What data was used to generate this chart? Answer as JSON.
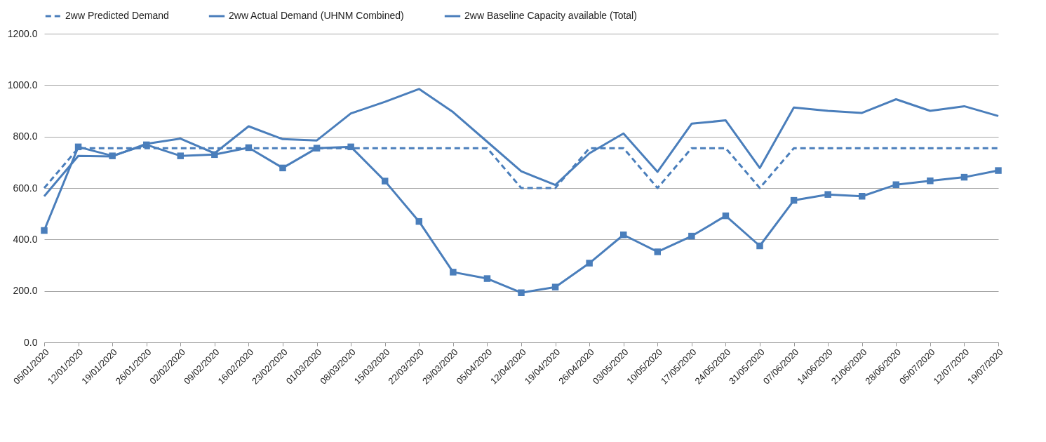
{
  "chart_data": {
    "type": "line",
    "categories": [
      "05/01/2020",
      "12/01/2020",
      "19/01/2020",
      "26/01/2020",
      "02/02/2020",
      "09/02/2020",
      "16/02/2020",
      "23/02/2020",
      "01/03/2020",
      "08/03/2020",
      "15/03/2020",
      "22/03/2020",
      "29/03/2020",
      "05/04/2020",
      "12/04/2020",
      "19/04/2020",
      "26/04/2020",
      "03/05/2020",
      "10/05/2020",
      "17/05/2020",
      "24/05/2020",
      "31/05/2020",
      "07/06/2020",
      "14/06/2020",
      "21/06/2020",
      "28/06/2020",
      "05/07/2020",
      "12/07/2020",
      "19/07/2020"
    ],
    "series": [
      {
        "name": "2ww Predicted Demand",
        "color": "#4a7ebb",
        "line_style": "dashed",
        "values": [
          600,
          755,
          755,
          755,
          755,
          755,
          755,
          755,
          755,
          755,
          755,
          755,
          755,
          755,
          600,
          600,
          755,
          755,
          600,
          755,
          755,
          600,
          755,
          755,
          755,
          755,
          755,
          755,
          755
        ]
      },
      {
        "name": "2ww Actual Demand (UHNM Combined)",
        "color": "#4a7ebb",
        "marker": "square",
        "values": [
          435,
          760,
          725,
          768,
          725,
          730,
          757,
          678,
          755,
          760,
          627,
          470,
          273,
          248,
          193,
          215,
          308,
          418,
          352,
          413,
          492,
          375,
          552,
          575,
          568,
          613,
          628,
          642,
          668
        ]
      },
      {
        "name": "2ww Baseline Capacity available (Total)",
        "color": "#4a7ebb",
        "values": [
          568,
          725,
          723,
          772,
          792,
          735,
          840,
          790,
          785,
          890,
          935,
          985,
          895,
          780,
          665,
          612,
          735,
          812,
          663,
          850,
          863,
          678,
          913,
          900,
          892,
          945,
          900,
          918,
          880
        ]
      }
    ],
    "ylim": [
      0,
      1200
    ],
    "yticks": [
      {
        "value": 0,
        "label": "0.0"
      },
      {
        "value": 200,
        "label": "200.0"
      },
      {
        "value": 400,
        "label": "400.0"
      },
      {
        "value": 600,
        "label": "600.0"
      },
      {
        "value": 800,
        "label": "800.0"
      },
      {
        "value": 1000,
        "label": "1000.0"
      },
      {
        "value": 1200,
        "label": "1200.0"
      }
    ],
    "grid": "y",
    "legend": "top"
  }
}
